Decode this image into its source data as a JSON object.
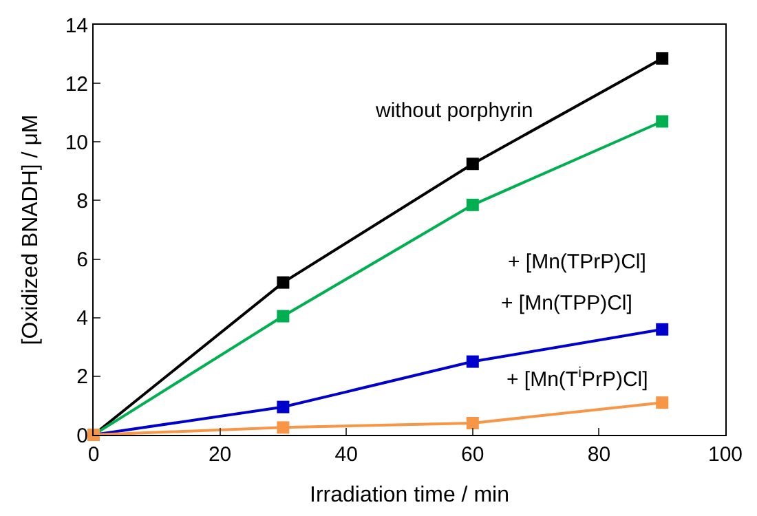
{
  "chart_data": {
    "type": "line",
    "xlabel": "Irradiation time / min",
    "ylabel": "[Oxidized BNADH] / μM",
    "x": [
      0,
      30,
      60,
      90
    ],
    "series": [
      {
        "name": "without porphyrin",
        "color": "#000000",
        "values": [
          0,
          5.2,
          9.25,
          12.85
        ]
      },
      {
        "name": "+ [Mn(TPrP)Cl]",
        "color": "#00b050",
        "values": [
          0,
          4.05,
          7.85,
          10.7
        ]
      },
      {
        "name": "+ [Mn(TPP)Cl]",
        "color": "#0000cc",
        "values": [
          0,
          0.95,
          2.5,
          3.6
        ]
      },
      {
        "name": "+ [Mn(T$^{i}$PrP)Cl]",
        "color": "#f79646",
        "values": [
          0,
          0.25,
          0.4,
          1.1
        ]
      }
    ],
    "xlim": [
      0,
      100
    ],
    "xticks": [
      0,
      20,
      40,
      60,
      80,
      100
    ],
    "ylim": [
      0,
      14
    ],
    "yticks": [
      0,
      2,
      4,
      6,
      8,
      10,
      12,
      14
    ],
    "marker": "square",
    "line_style": "solid"
  }
}
